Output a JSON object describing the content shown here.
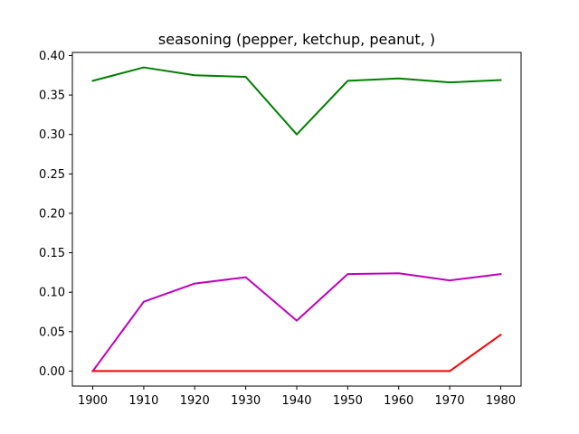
{
  "chart_data": {
    "type": "line",
    "title": "seasoning (pepper, ketchup, peanut, )",
    "xlabel": "",
    "ylabel": "",
    "x": [
      1900,
      1910,
      1920,
      1930,
      1940,
      1950,
      1960,
      1970,
      1980
    ],
    "xlim": [
      1896.0,
      1984.0
    ],
    "ylim": [
      -0.019,
      0.404
    ],
    "xticks": [
      1900,
      1910,
      1920,
      1930,
      1940,
      1950,
      1960,
      1970,
      1980
    ],
    "xtick_labels": [
      "1900",
      "1910",
      "1920",
      "1930",
      "1940",
      "1950",
      "1960",
      "1970",
      "1980"
    ],
    "yticks": [
      0.0,
      0.05,
      0.1,
      0.15,
      0.2,
      0.25,
      0.3,
      0.35,
      0.4
    ],
    "ytick_labels": [
      "0.00",
      "0.05",
      "0.10",
      "0.15",
      "0.20",
      "0.25",
      "0.30",
      "0.35",
      "0.40"
    ],
    "grid": false,
    "legend": "none",
    "series": [
      {
        "color": "#008000",
        "values": [
          0.368,
          0.385,
          0.375,
          0.373,
          0.3,
          0.368,
          0.371,
          0.366,
          0.369
        ]
      },
      {
        "color": "#bf00bf",
        "values": [
          0.0,
          0.088,
          0.111,
          0.119,
          0.064,
          0.123,
          0.124,
          0.115,
          0.123
        ]
      },
      {
        "color": "#ff0000",
        "values": [
          0.0,
          0.0,
          0.0,
          0.0,
          0.0,
          0.0,
          0.0,
          0.0,
          0.046
        ]
      }
    ]
  }
}
